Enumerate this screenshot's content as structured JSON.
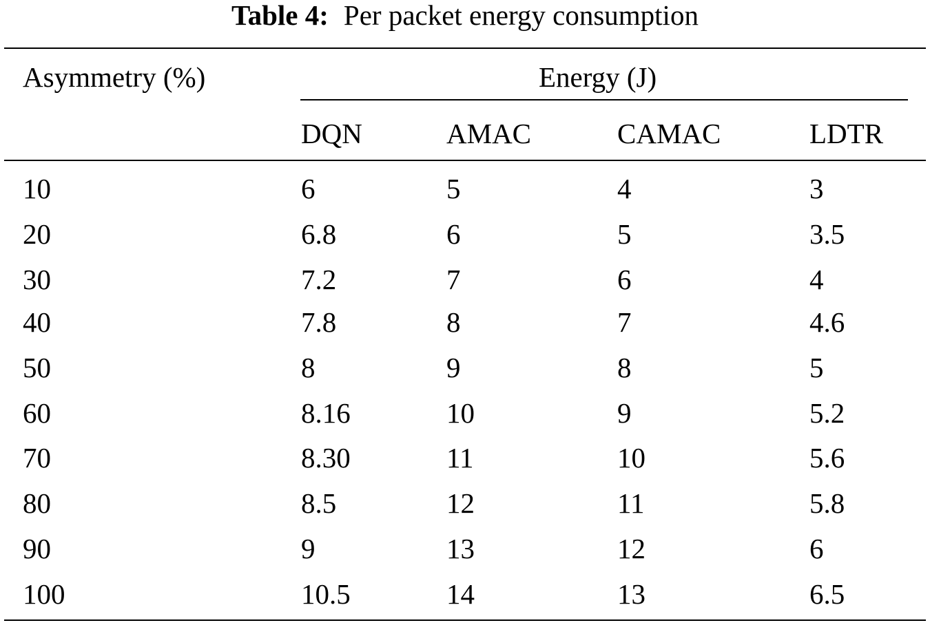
{
  "caption": {
    "label": "Table 4:",
    "text": "Per packet energy consumption"
  },
  "header": {
    "row_label": "Asymmetry (%)",
    "group_label": "Energy (J)",
    "columns": [
      "DQN",
      "AMAC",
      "CAMAC",
      "LDTR"
    ]
  },
  "rows": [
    {
      "asymmetry": "10",
      "dqn": "6",
      "amac": "5",
      "camac": "4",
      "ldtr": "3"
    },
    {
      "asymmetry": "20",
      "dqn": "6.8",
      "amac": "6",
      "camac": "5",
      "ldtr": "3.5"
    },
    {
      "asymmetry": "30",
      "dqn": "7.2",
      "amac": "7",
      "camac": "6",
      "ldtr": "4"
    },
    {
      "asymmetry": "40",
      "dqn": "7.8",
      "amac": "8",
      "camac": "7",
      "ldtr": "4.6"
    },
    {
      "asymmetry": "50",
      "dqn": "8",
      "amac": "9",
      "camac": "8",
      "ldtr": "5"
    },
    {
      "asymmetry": "60",
      "dqn": "8.16",
      "amac": "10",
      "camac": "9",
      "ldtr": "5.2"
    },
    {
      "asymmetry": "70",
      "dqn": "8.30",
      "amac": "11",
      "camac": "10",
      "ldtr": "5.6"
    },
    {
      "asymmetry": "80",
      "dqn": "8.5",
      "amac": "12",
      "camac": "11",
      "ldtr": "5.8"
    },
    {
      "asymmetry": "90",
      "dqn": "9",
      "amac": "13",
      "camac": "12",
      "ldtr": "6"
    },
    {
      "asymmetry": "100",
      "dqn": "10.5",
      "amac": "14",
      "camac": "13",
      "ldtr": "6.5"
    }
  ]
}
